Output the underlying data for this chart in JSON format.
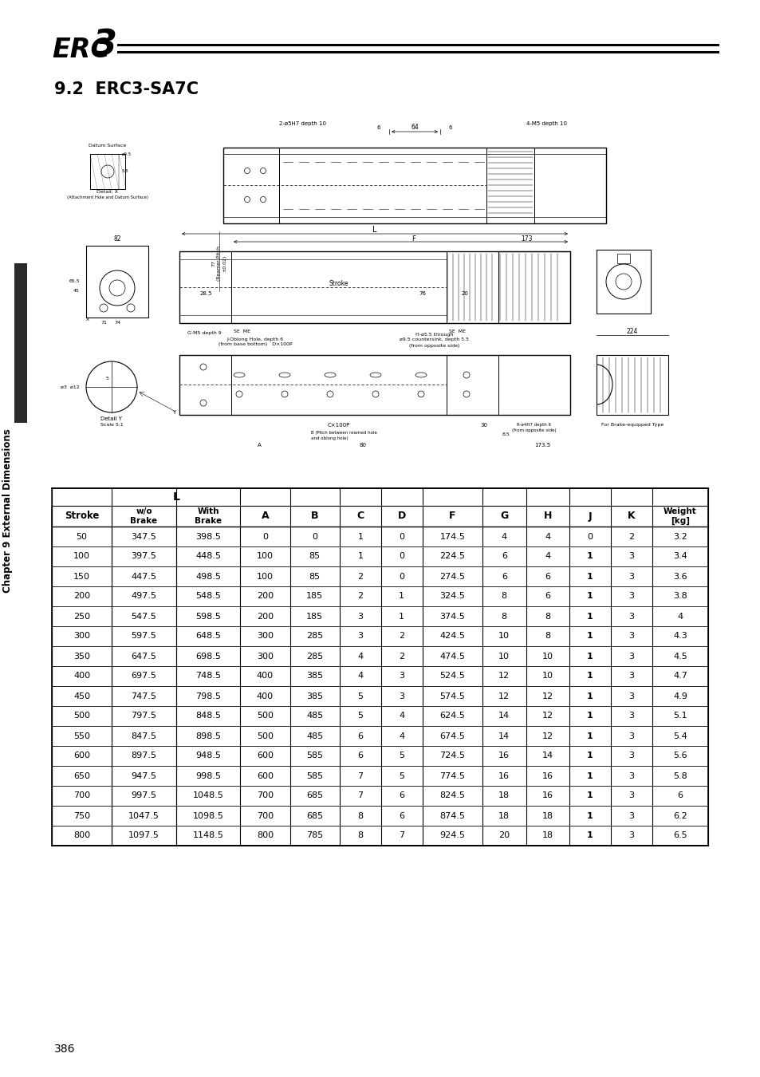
{
  "title_section": "9.2  ERC3-SA7C",
  "page_number": "386",
  "side_text": "Chapter 9 External Dimensions",
  "table_data": [
    [
      50,
      347.5,
      398.5,
      0,
      0,
      1,
      0,
      174.5,
      4,
      4,
      0,
      2,
      3.2
    ],
    [
      100,
      397.5,
      448.5,
      100,
      85,
      1,
      0,
      224.5,
      6,
      4,
      1,
      3,
      3.4
    ],
    [
      150,
      447.5,
      498.5,
      100,
      85,
      2,
      0,
      274.5,
      6,
      6,
      1,
      3,
      3.6
    ],
    [
      200,
      497.5,
      548.5,
      200,
      185,
      2,
      1,
      324.5,
      8,
      6,
      1,
      3,
      3.8
    ],
    [
      250,
      547.5,
      598.5,
      200,
      185,
      3,
      1,
      374.5,
      8,
      8,
      1,
      3,
      4.0
    ],
    [
      300,
      597.5,
      648.5,
      300,
      285,
      3,
      2,
      424.5,
      10,
      8,
      1,
      3,
      4.3
    ],
    [
      350,
      647.5,
      698.5,
      300,
      285,
      4,
      2,
      474.5,
      10,
      10,
      1,
      3,
      4.5
    ],
    [
      400,
      697.5,
      748.5,
      400,
      385,
      4,
      3,
      524.5,
      12,
      10,
      1,
      3,
      4.7
    ],
    [
      450,
      747.5,
      798.5,
      400,
      385,
      5,
      3,
      574.5,
      12,
      12,
      1,
      3,
      4.9
    ],
    [
      500,
      797.5,
      848.5,
      500,
      485,
      5,
      4,
      624.5,
      14,
      12,
      1,
      3,
      5.1
    ],
    [
      550,
      847.5,
      898.5,
      500,
      485,
      6,
      4,
      674.5,
      14,
      12,
      1,
      3,
      5.4
    ],
    [
      600,
      897.5,
      948.5,
      600,
      585,
      6,
      5,
      724.5,
      16,
      14,
      1,
      3,
      5.6
    ],
    [
      650,
      947.5,
      998.5,
      600,
      585,
      7,
      5,
      774.5,
      16,
      16,
      1,
      3,
      5.8
    ],
    [
      700,
      997.5,
      1048.5,
      700,
      685,
      7,
      6,
      824.5,
      18,
      16,
      1,
      3,
      6.0
    ],
    [
      750,
      1047.5,
      1098.5,
      700,
      685,
      8,
      6,
      874.5,
      18,
      18,
      1,
      3,
      6.2
    ],
    [
      800,
      1097.5,
      1148.5,
      800,
      785,
      8,
      7,
      924.5,
      20,
      18,
      1,
      3,
      6.5
    ]
  ],
  "bg_color": "#ffffff",
  "lc": "#000000",
  "tc": "#000000"
}
